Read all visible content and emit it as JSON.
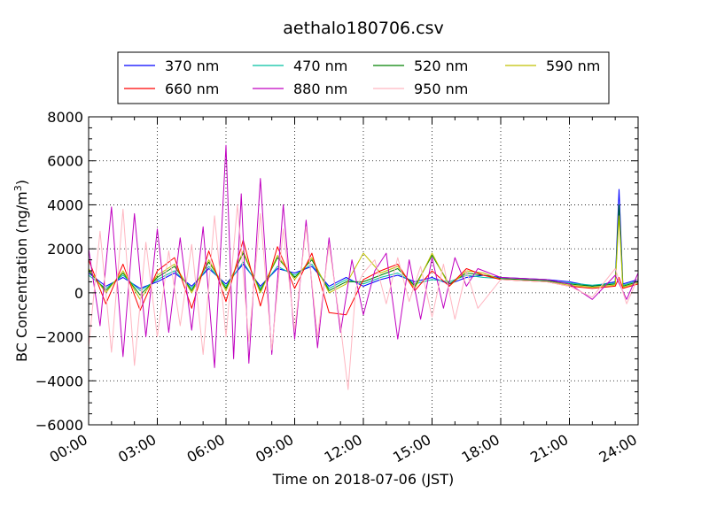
{
  "chart_data": {
    "type": "line",
    "title": "aethalo180706.csv",
    "xlabel": "Time on 2018-07-06 (JST)",
    "ylabel": "BC Concentration (ng/m³)",
    "ylabel_base": "BC Concentration (ng/m",
    "ylabel_sup": "3",
    "ylabel_tail": ")",
    "xlim": [
      "00:00",
      "24:00"
    ],
    "ylim": [
      -6000,
      8000
    ],
    "xticks": [
      "00:00",
      "03:00",
      "06:00",
      "09:00",
      "12:00",
      "15:00",
      "18:00",
      "21:00",
      "24:00"
    ],
    "yticks": [
      -6000,
      -4000,
      -2000,
      0,
      2000,
      4000,
      6000,
      8000
    ],
    "ytick_labels": [
      "−6000",
      "−4000",
      "−2000",
      "0",
      "2000",
      "4000",
      "6000",
      "8000"
    ],
    "grid": true,
    "legend_position": "top",
    "legend_columns": 4,
    "series": [
      {
        "name": "370 nm",
        "color": "#0000ff",
        "x": [
          "00:00",
          "00:45",
          "01:30",
          "02:15",
          "03:00",
          "03:45",
          "04:30",
          "05:15",
          "06:00",
          "06:45",
          "07:30",
          "08:15",
          "09:00",
          "09:45",
          "10:30",
          "11:15",
          "12:00",
          "12:45",
          "13:30",
          "14:15",
          "15:00",
          "15:45",
          "16:30",
          "17:15",
          "18:00",
          "20:00",
          "21:00",
          "22:00",
          "23:00",
          "23:10",
          "23:20",
          "24:00"
        ],
        "y": [
          900,
          300,
          700,
          200,
          500,
          900,
          300,
          1100,
          400,
          1300,
          300,
          1100,
          900,
          1200,
          300,
          700,
          300,
          600,
          800,
          500,
          700,
          400,
          700,
          800,
          700,
          600,
          500,
          300,
          500,
          4700,
          400,
          600
        ]
      },
      {
        "name": "470 nm",
        "color": "#00c0a0",
        "x": [
          "00:00",
          "00:45",
          "01:30",
          "02:15",
          "03:00",
          "03:45",
          "04:30",
          "05:15",
          "06:00",
          "06:45",
          "07:30",
          "08:15",
          "09:00",
          "09:45",
          "10:30",
          "11:15",
          "12:00",
          "12:45",
          "13:30",
          "14:15",
          "15:00",
          "15:45",
          "16:30",
          "17:15",
          "18:00",
          "20:00",
          "21:00",
          "22:00",
          "23:00",
          "23:10",
          "23:20",
          "24:00"
        ],
        "y": [
          800,
          200,
          800,
          100,
          600,
          1000,
          200,
          1200,
          300,
          1400,
          200,
          1200,
          800,
          1300,
          200,
          600,
          400,
          700,
          900,
          400,
          600,
          500,
          800,
          700,
          650,
          550,
          450,
          350,
          450,
          3800,
          350,
          550
        ]
      },
      {
        "name": "520 nm",
        "color": "#008000",
        "x": [
          "00:00",
          "00:45",
          "01:30",
          "02:15",
          "03:00",
          "03:45",
          "04:30",
          "05:15",
          "06:00",
          "06:45",
          "07:30",
          "08:15",
          "09:00",
          "09:45",
          "10:30",
          "11:15",
          "12:00",
          "12:45",
          "13:30",
          "14:15",
          "15:00",
          "15:45",
          "16:30",
          "17:15",
          "18:00",
          "20:00",
          "21:00",
          "22:00",
          "23:00",
          "23:10",
          "23:20",
          "24:00"
        ],
        "y": [
          1000,
          100,
          900,
          -100,
          700,
          1200,
          100,
          1400,
          200,
          1800,
          100,
          1600,
          700,
          1500,
          100,
          500,
          500,
          800,
          1100,
          300,
          1700,
          400,
          900,
          800,
          650,
          550,
          400,
          300,
          400,
          4000,
          300,
          500
        ]
      },
      {
        "name": "590 nm",
        "color": "#c0c000",
        "x": [
          "00:00",
          "00:45",
          "01:30",
          "02:15",
          "03:00",
          "03:45",
          "04:30",
          "05:15",
          "06:00",
          "06:45",
          "07:30",
          "08:15",
          "09:00",
          "09:45",
          "10:30",
          "11:15",
          "12:00",
          "12:45",
          "13:30",
          "14:15",
          "15:00",
          "15:45",
          "16:30",
          "17:15",
          "18:00",
          "20:00",
          "21:00",
          "22:00",
          "23:00",
          "23:10",
          "23:20",
          "24:00"
        ],
        "y": [
          1100,
          0,
          1000,
          -300,
          800,
          1300,
          0,
          1500,
          100,
          1900,
          0,
          1700,
          600,
          1600,
          0,
          400,
          1800,
          900,
          1200,
          200,
          1800,
          300,
          1000,
          900,
          600,
          500,
          350,
          250,
          350,
          3500,
          250,
          450
        ]
      },
      {
        "name": "660 nm",
        "color": "#ff0000",
        "x": [
          "00:00",
          "00:45",
          "01:30",
          "02:15",
          "03:00",
          "03:45",
          "04:30",
          "05:15",
          "06:00",
          "06:45",
          "07:30",
          "08:15",
          "09:00",
          "09:45",
          "10:30",
          "11:15",
          "12:00",
          "12:45",
          "13:30",
          "14:15",
          "15:00",
          "15:45",
          "16:30",
          "17:15",
          "18:00",
          "20:00",
          "21:00",
          "22:00",
          "23:00",
          "23:10",
          "23:20",
          "24:00"
        ],
        "y": [
          1500,
          -500,
          1300,
          -800,
          1000,
          1600,
          -700,
          1900,
          -400,
          2400,
          -600,
          2100,
          200,
          1800,
          -900,
          -1000,
          600,
          1000,
          1300,
          100,
          1000,
          300,
          1100,
          800,
          600,
          500,
          300,
          200,
          300,
          700,
          200,
          400
        ]
      },
      {
        "name": "880 nm",
        "color": "#c000c0",
        "x": [
          "00:00",
          "00:30",
          "01:00",
          "01:30",
          "02:00",
          "02:30",
          "03:00",
          "03:30",
          "04:00",
          "04:30",
          "05:00",
          "05:30",
          "06:00",
          "06:20",
          "06:40",
          "07:00",
          "07:30",
          "08:00",
          "08:30",
          "09:00",
          "09:30",
          "10:00",
          "10:30",
          "11:00",
          "11:30",
          "12:00",
          "12:30",
          "13:00",
          "13:30",
          "14:00",
          "14:30",
          "15:00",
          "15:30",
          "16:00",
          "16:30",
          "17:00",
          "18:00",
          "20:00",
          "21:00",
          "22:00",
          "23:00",
          "23:30",
          "24:00"
        ],
        "y": [
          2000,
          -1500,
          3900,
          -2900,
          3600,
          -2000,
          2900,
          -1800,
          2500,
          -1700,
          3000,
          -3400,
          6700,
          -3000,
          4500,
          -3200,
          5200,
          -2800,
          4000,
          -2100,
          3300,
          -2500,
          2500,
          -1800,
          1500,
          -1000,
          1000,
          1800,
          -2100,
          1500,
          -1200,
          1600,
          -700,
          1600,
          300,
          1100,
          700,
          600,
          400,
          -300,
          800,
          -300,
          900
        ]
      },
      {
        "name": "950 nm",
        "color": "#ffb6c1",
        "x": [
          "00:00",
          "00:30",
          "01:00",
          "01:30",
          "02:00",
          "02:30",
          "03:00",
          "03:30",
          "04:00",
          "04:30",
          "05:00",
          "05:30",
          "06:00",
          "06:30",
          "07:00",
          "07:30",
          "08:00",
          "08:30",
          "09:00",
          "09:30",
          "10:00",
          "10:30",
          "11:00",
          "11:20",
          "11:40",
          "12:00",
          "12:30",
          "13:00",
          "13:30",
          "14:00",
          "14:30",
          "15:00",
          "15:30",
          "16:00",
          "16:30",
          "17:00",
          "18:00",
          "20:00",
          "21:00",
          "22:00",
          "23:00",
          "23:30",
          "24:00"
        ],
        "y": [
          -2500,
          2800,
          -2700,
          3800,
          -3300,
          2300,
          -2000,
          1900,
          -1500,
          2200,
          -2800,
          3500,
          -2000,
          4000,
          -2200,
          3600,
          -2600,
          2900,
          -1700,
          3000,
          -2000,
          2200,
          -1500,
          -4400,
          200,
          900,
          1500,
          -500,
          1600,
          -400,
          1200,
          -1100,
          1300,
          -1200,
          1000,
          -700,
          600,
          500,
          300,
          -200,
          1100,
          -500,
          700
        ]
      }
    ]
  }
}
